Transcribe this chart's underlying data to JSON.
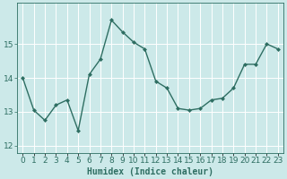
{
  "x": [
    0,
    1,
    2,
    3,
    4,
    5,
    6,
    7,
    8,
    9,
    10,
    11,
    12,
    13,
    14,
    15,
    16,
    17,
    18,
    19,
    20,
    21,
    22,
    23
  ],
  "y": [
    14.0,
    13.05,
    12.75,
    13.2,
    13.35,
    12.45,
    14.1,
    14.55,
    15.7,
    15.35,
    15.05,
    14.85,
    13.9,
    13.7,
    13.1,
    13.05,
    13.1,
    13.35,
    13.4,
    13.7,
    14.4,
    14.4,
    15.0,
    14.85
  ],
  "line_color": "#2e6e62",
  "marker": "D",
  "markersize": 2.0,
  "linewidth": 1.0,
  "bg_color": "#cce9e9",
  "grid_color": "#b0d8d8",
  "xlabel": "Humidex (Indice chaleur)",
  "xlabel_fontsize": 7,
  "tick_fontsize": 6.5,
  "ylim": [
    11.8,
    16.2
  ],
  "yticks": [
    12,
    13,
    14,
    15
  ],
  "xlim": [
    -0.5,
    23.5
  ]
}
